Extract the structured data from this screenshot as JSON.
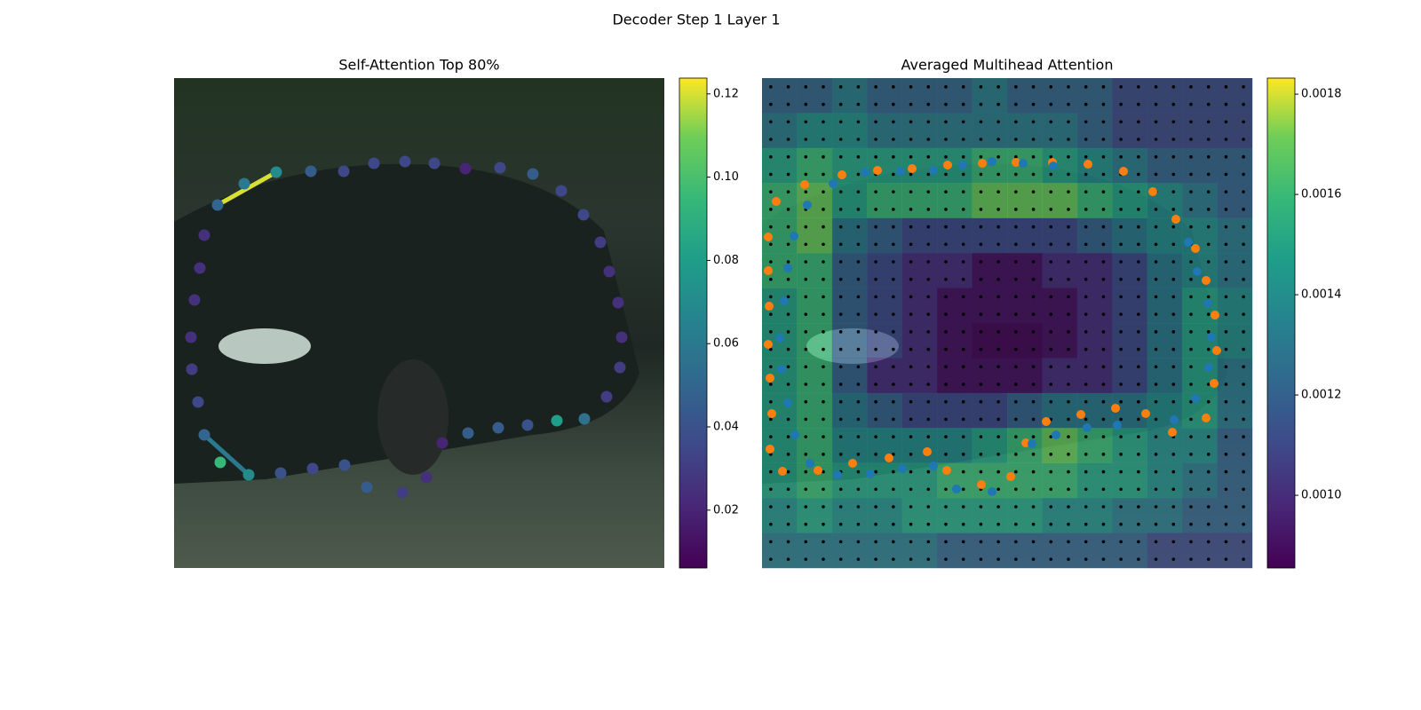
{
  "title": "Decoder Step 1 Layer 1",
  "chart_data": [
    {
      "type": "scatter",
      "title": "Self-Attention Top 80%",
      "colormap": "viridis",
      "x": [
        49,
        79,
        115,
        154,
        191,
        225,
        260,
        293,
        328,
        367,
        404,
        436,
        461,
        480,
        490,
        500,
        504,
        502,
        487,
        462,
        431,
        398,
        365,
        331,
        302,
        284,
        257,
        217,
        192,
        156,
        120,
        84,
        52,
        34,
        27,
        20,
        19,
        23,
        29,
        34
      ],
      "y": [
        143,
        119,
        106,
        105,
        105,
        96,
        94,
        96,
        102,
        101,
        108,
        127,
        154,
        185,
        218,
        253,
        292,
        326,
        359,
        384,
        386,
        391,
        394,
        400,
        411,
        450,
        467,
        461,
        436,
        440,
        445,
        447,
        433,
        402,
        365,
        328,
        292,
        250,
        214,
        177
      ],
      "values": [
        0.05,
        0.06,
        0.07,
        0.045,
        0.035,
        0.035,
        0.035,
        0.035,
        0.02,
        0.035,
        0.045,
        0.035,
        0.035,
        0.03,
        0.025,
        0.025,
        0.025,
        0.03,
        0.03,
        0.055,
        0.08,
        0.04,
        0.045,
        0.045,
        0.02,
        0.025,
        0.03,
        0.045,
        0.04,
        0.035,
        0.04,
        0.07,
        0.095,
        0.05,
        0.035,
        0.03,
        0.025,
        0.025,
        0.025,
        0.025
      ],
      "edges": [
        {
          "from": 0,
          "to": 2,
          "value": 0.12
        },
        {
          "from": 33,
          "to": 31,
          "value": 0.06
        }
      ],
      "xlim": [
        0,
        552
      ],
      "ylim": [
        552,
        0
      ],
      "clim": [
        0.0061,
        0.1238
      ],
      "cticks": [
        0.02,
        0.04,
        0.06,
        0.08,
        {
          "value": 0.1,
          "label": "0.10"
        },
        0.12
      ]
    },
    {
      "type": "heatmap",
      "title": "Averaged Multihead Attention",
      "colormap": "viridis",
      "z": [
        [
          0.0012,
          0.0012,
          0.0013,
          0.0012,
          0.0012,
          0.0012,
          0.0013,
          0.0012,
          0.0012,
          0.0012,
          0.0011,
          0.0011,
          0.0011,
          0.0011
        ],
        [
          0.0013,
          0.0014,
          0.0014,
          0.0013,
          0.0013,
          0.0013,
          0.0013,
          0.0013,
          0.0013,
          0.0012,
          0.0011,
          0.0011,
          0.0011,
          0.0011
        ],
        [
          0.0015,
          0.0016,
          0.0015,
          0.0015,
          0.0015,
          0.0015,
          0.0016,
          0.0016,
          0.0015,
          0.0014,
          0.0013,
          0.0012,
          0.0012,
          0.0012
        ],
        [
          0.0016,
          0.0017,
          0.0015,
          0.0016,
          0.0016,
          0.0016,
          0.0017,
          0.0017,
          0.0017,
          0.0016,
          0.0015,
          0.0014,
          0.0013,
          0.0012
        ],
        [
          0.0016,
          0.0017,
          0.0013,
          0.0012,
          0.0011,
          0.0011,
          0.0011,
          0.0011,
          0.0011,
          0.0012,
          0.0013,
          0.0014,
          0.0014,
          0.0013
        ],
        [
          0.0016,
          0.0016,
          0.0012,
          0.0011,
          0.001,
          0.001,
          0.0009,
          0.0009,
          0.001,
          0.001,
          0.0011,
          0.0013,
          0.0014,
          0.0013
        ],
        [
          0.0015,
          0.0016,
          0.0012,
          0.0011,
          0.001,
          0.0009,
          0.0009,
          0.0009,
          0.0009,
          0.001,
          0.0011,
          0.0013,
          0.0015,
          0.0014
        ],
        [
          0.0015,
          0.0016,
          0.0012,
          0.0011,
          0.001,
          0.0009,
          0.00087,
          0.00087,
          0.0009,
          0.001,
          0.0011,
          0.0013,
          0.0015,
          0.0014
        ],
        [
          0.0015,
          0.0016,
          0.0012,
          0.001,
          0.001,
          0.0009,
          0.0009,
          0.0009,
          0.001,
          0.001,
          0.0011,
          0.0013,
          0.0015,
          0.0013
        ],
        [
          0.0015,
          0.0016,
          0.0013,
          0.0012,
          0.0011,
          0.0011,
          0.0011,
          0.0012,
          0.0013,
          0.0013,
          0.0013,
          0.0014,
          0.0015,
          0.0013
        ],
        [
          0.0015,
          0.0016,
          0.0014,
          0.0014,
          0.0014,
          0.0014,
          0.0015,
          0.0016,
          0.0017,
          0.0016,
          0.0015,
          0.0014,
          0.0014,
          0.0012
        ],
        [
          0.0015,
          0.0016,
          0.0015,
          0.0015,
          0.0015,
          0.0016,
          0.0016,
          0.0016,
          0.0016,
          0.0015,
          0.0015,
          0.0014,
          0.0013,
          0.0012
        ],
        [
          0.0014,
          0.0015,
          0.0014,
          0.0014,
          0.0015,
          0.0015,
          0.0015,
          0.0015,
          0.0014,
          0.0014,
          0.0013,
          0.0013,
          0.0012,
          0.0012
        ],
        [
          0.0013,
          0.0013,
          0.0013,
          0.0013,
          0.0013,
          0.0012,
          0.0012,
          0.0012,
          0.0012,
          0.0012,
          0.0012,
          0.0011,
          0.0011,
          0.0011
        ]
      ],
      "series": [
        {
          "color": "#ff7f0e",
          "x": [
            7,
            16,
            48,
            90,
            130,
            169,
            209,
            248,
            286,
            327,
            367,
            407,
            440,
            466,
            488,
            500,
            510,
            512,
            509,
            500,
            462,
            432,
            398,
            359,
            320,
            297,
            280,
            247,
            208,
            186,
            143,
            102,
            63,
            23,
            9,
            11,
            9,
            7,
            8,
            7
          ],
          "y": [
            179,
            139,
            120,
            109,
            104,
            102,
            98,
            96,
            95,
            95,
            97,
            105,
            128,
            159,
            192,
            228,
            267,
            307,
            344,
            383,
            399,
            378,
            372,
            379,
            387,
            411,
            449,
            458,
            442,
            421,
            428,
            434,
            442,
            443,
            418,
            378,
            338,
            300,
            257,
            217
          ]
        },
        {
          "color": "#1f77b4",
          "x": [
            29,
            36,
            51,
            80,
            116,
            156,
            193,
            226,
            259,
            294,
            328,
            480,
            490,
            502,
            506,
            503,
            488,
            464,
            400,
            366,
            331,
            304,
            259,
            219,
            193,
            158,
            122,
            85,
            54,
            37,
            29,
            22,
            20,
            25
          ],
          "y": [
            214,
            178,
            143,
            119,
            106,
            105,
            104,
            98,
            94,
            96,
            99,
            185,
            218,
            254,
            292,
            326,
            361,
            385,
            391,
            394,
            402,
            412,
            466,
            463,
            437,
            440,
            446,
            447,
            434,
            402,
            366,
            328,
            293,
            251
          ]
        }
      ],
      "xlim": [
        0,
        552
      ],
      "ylim": [
        552,
        0
      ],
      "clim": [
        0.000855,
        0.001832
      ],
      "cticks": [
        {
          "value": 0.001,
          "label": "0.0010"
        },
        0.0012,
        0.0014,
        0.0016,
        0.0018
      ]
    }
  ]
}
